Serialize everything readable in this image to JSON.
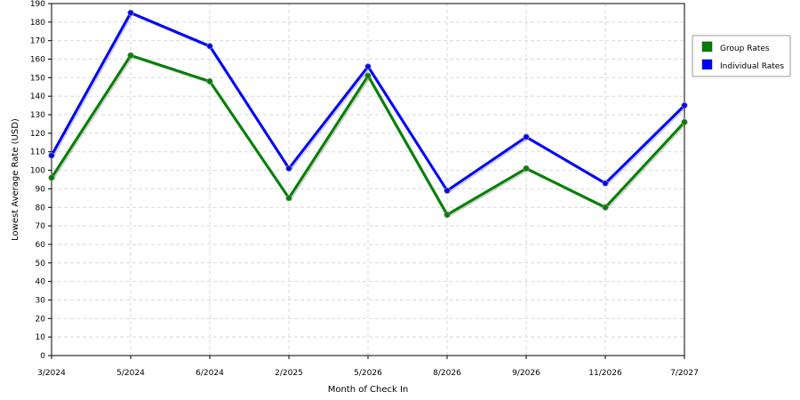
{
  "chart_data": {
    "type": "line",
    "title": "",
    "xlabel": "Month of Check In",
    "ylabel": "Lowest Average Rate (USD)",
    "categories": [
      "3/2024",
      "5/2024",
      "6/2024",
      "2/2025",
      "5/2026",
      "8/2026",
      "9/2026",
      "11/2026",
      "7/2027"
    ],
    "ylim": [
      0,
      190
    ],
    "y_ticks": [
      0,
      10,
      20,
      30,
      40,
      50,
      60,
      70,
      80,
      90,
      100,
      110,
      120,
      130,
      140,
      150,
      160,
      170,
      180,
      190
    ],
    "grid": true,
    "legend_position": "right",
    "series": [
      {
        "name": "Group Rates",
        "color": "#008000",
        "values": [
          96,
          162,
          148,
          85,
          151,
          76,
          101,
          80,
          126
        ]
      },
      {
        "name": "Individual Rates",
        "color": "#0000ff",
        "values": [
          108,
          185,
          167,
          101,
          156,
          89,
          118,
          93,
          135
        ]
      }
    ]
  }
}
